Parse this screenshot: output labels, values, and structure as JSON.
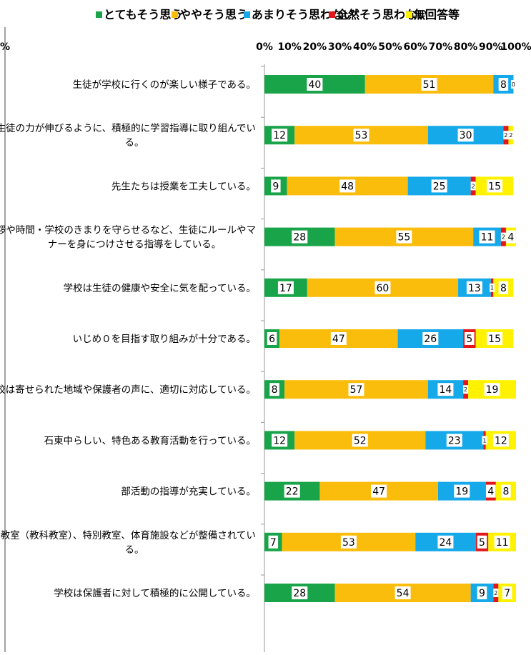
{
  "chart_data": {
    "type": "bar",
    "stacked": true,
    "orientation": "horizontal",
    "percent_scale": true,
    "title": "",
    "xlabel": "",
    "ylabel": "",
    "xlim": [
      0,
      100
    ],
    "x_ticks": [
      "0%",
      "10%",
      "20%",
      "30%",
      "40%",
      "50%",
      "60%",
      "70%",
      "80%",
      "90%",
      "100%"
    ],
    "edge_tick": "%",
    "legend_position": "top",
    "grid": false,
    "categories": [
      [
        "生徒が学校に行くのが楽しい様子である。"
      ],
      [
        "学校は生徒の力が伸びるように、積極的に学習指導に取り組んでい",
        "る。"
      ],
      [
        "先生たちは授業を工夫している。"
      ],
      [
        "学校は挨拶や時間・学校のきまりを守らせるなど、生徒にルールやマ",
        "ナーを身につけさせる指導をしている。"
      ],
      [
        "学校は生徒の健康や安全に気を配っている。"
      ],
      [
        "いじめ０を目指す取り組みが十分である。"
      ],
      [
        "学校は寄せられた地域や保護者の声に、適切に対応している。"
      ],
      [
        "石東中らしい、特色ある教育活動を行っている。"
      ],
      [
        "部活動の指導が充実している。"
      ],
      [
        "学校の教室（教科教室）、特別教室、体育施設などが整備されてい",
        "る。"
      ],
      [
        "学校は保護者に対して積極的に公開している。"
      ]
    ],
    "series": [
      {
        "name": "とてもそう思う",
        "color": "#1aa44a",
        "values": [
          40,
          12,
          9,
          28,
          17,
          6,
          8,
          12,
          22,
          7,
          28
        ]
      },
      {
        "name": "ややそう思う",
        "color": "#fbbd0b",
        "values": [
          51,
          53,
          48,
          55,
          60,
          47,
          57,
          52,
          47,
          53,
          54
        ]
      },
      {
        "name": "あまりそう思わない",
        "color": "#16a9e9",
        "values": [
          8,
          30,
          25,
          11,
          13,
          26,
          14,
          23,
          19,
          24,
          9
        ]
      },
      {
        "name": "全然そう思わない",
        "color": "#e2171c",
        "values": [
          0,
          2,
          2,
          2,
          1,
          5,
          2,
          1,
          4,
          5,
          2
        ]
      },
      {
        "name": "無回答等",
        "color": "#fff200",
        "values": [
          0,
          2,
          15,
          4,
          8,
          15,
          19,
          12,
          8,
          11,
          7
        ]
      }
    ],
    "data_labels": [
      [
        "40",
        "51",
        "8",
        "0",
        ""
      ],
      [
        "12",
        "53",
        "30",
        "2",
        "2"
      ],
      [
        "9",
        "48",
        "25",
        "2",
        "15"
      ],
      [
        "28",
        "55",
        "11",
        "2",
        "4"
      ],
      [
        "17",
        "60",
        "13",
        "1",
        "8"
      ],
      [
        "6",
        "47",
        "26",
        "5",
        "15"
      ],
      [
        "8",
        "57",
        "14",
        "2",
        "19"
      ],
      [
        "12",
        "52",
        "23",
        "1",
        "12"
      ],
      [
        "22",
        "47",
        "19",
        "4",
        "8"
      ],
      [
        "7",
        "53",
        "24",
        "5",
        "11"
      ],
      [
        "28",
        "54",
        "9",
        "2",
        "7"
      ]
    ]
  }
}
